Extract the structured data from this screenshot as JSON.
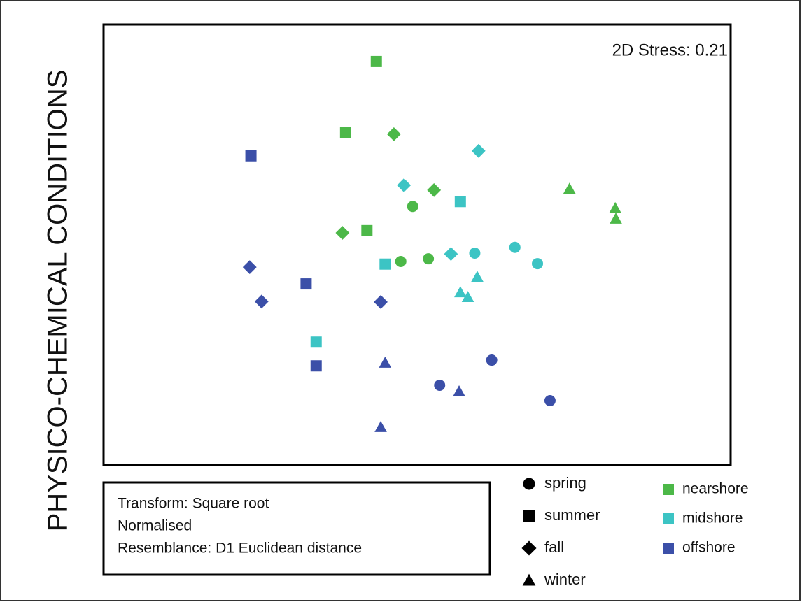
{
  "chart_data": {
    "type": "scatter",
    "y_label": "PHYSICO-CHEMICAL CONDITIONS",
    "annotation": "2D Stress: 0.21",
    "xlim": [
      0,
      100
    ],
    "ylim": [
      0,
      100
    ],
    "seasons": [
      "spring",
      "summer",
      "fall",
      "winter"
    ],
    "info": [
      "Transform: Square root",
      "Normalised",
      "Resemblance: D1 Euclidean distance"
    ],
    "groups": [
      {
        "name": "nearshore",
        "color": "#4cb848",
        "seasons": [
          {
            "x": [
              49.3,
              47.4,
              51.8
            ],
            "y": [
              58.7,
              46.2,
              46.8
            ]
          },
          {
            "x": [
              43.5,
              38.6,
              42.0
            ],
            "y": [
              91.6,
              75.4,
              53.2
            ]
          },
          {
            "x": [
              46.3,
              52.7,
              38.1
            ],
            "y": [
              75.1,
              62.4,
              52.7
            ]
          },
          {
            "x": [
              74.3,
              81.6,
              81.7
            ],
            "y": [
              62.7,
              58.3,
              55.9
            ]
          }
        ]
      },
      {
        "name": "midshore",
        "color": "#3cc4c4",
        "seasons": [
          {
            "x": [
              59.2,
              65.6,
              69.2
            ],
            "y": [
              48.1,
              49.4,
              45.7
            ]
          },
          {
            "x": [
              56.9,
              44.9,
              33.9
            ],
            "y": [
              59.8,
              45.6,
              27.9
            ]
          },
          {
            "x": [
              59.8,
              47.9,
              55.4
            ],
            "y": [
              71.3,
              63.5,
              47.9
            ]
          },
          {
            "x": [
              59.6,
              56.9,
              58.1
            ],
            "y": [
              42.7,
              39.2,
              38.1
            ]
          }
        ]
      },
      {
        "name": "offshore",
        "color": "#3b4fa8",
        "seasons": [
          {
            "x": [
              61.9,
              53.6,
              71.2
            ],
            "y": [
              23.8,
              18.1,
              14.6
            ]
          },
          {
            "x": [
              23.5,
              32.3,
              33.9
            ],
            "y": [
              70.2,
              41.1,
              22.5
            ]
          },
          {
            "x": [
              23.3,
              25.2,
              44.2
            ],
            "y": [
              44.9,
              37.1,
              37.0
            ]
          },
          {
            "x": [
              44.9,
              56.7,
              44.2
            ],
            "y": [
              23.2,
              16.7,
              8.6
            ]
          }
        ]
      }
    ]
  }
}
